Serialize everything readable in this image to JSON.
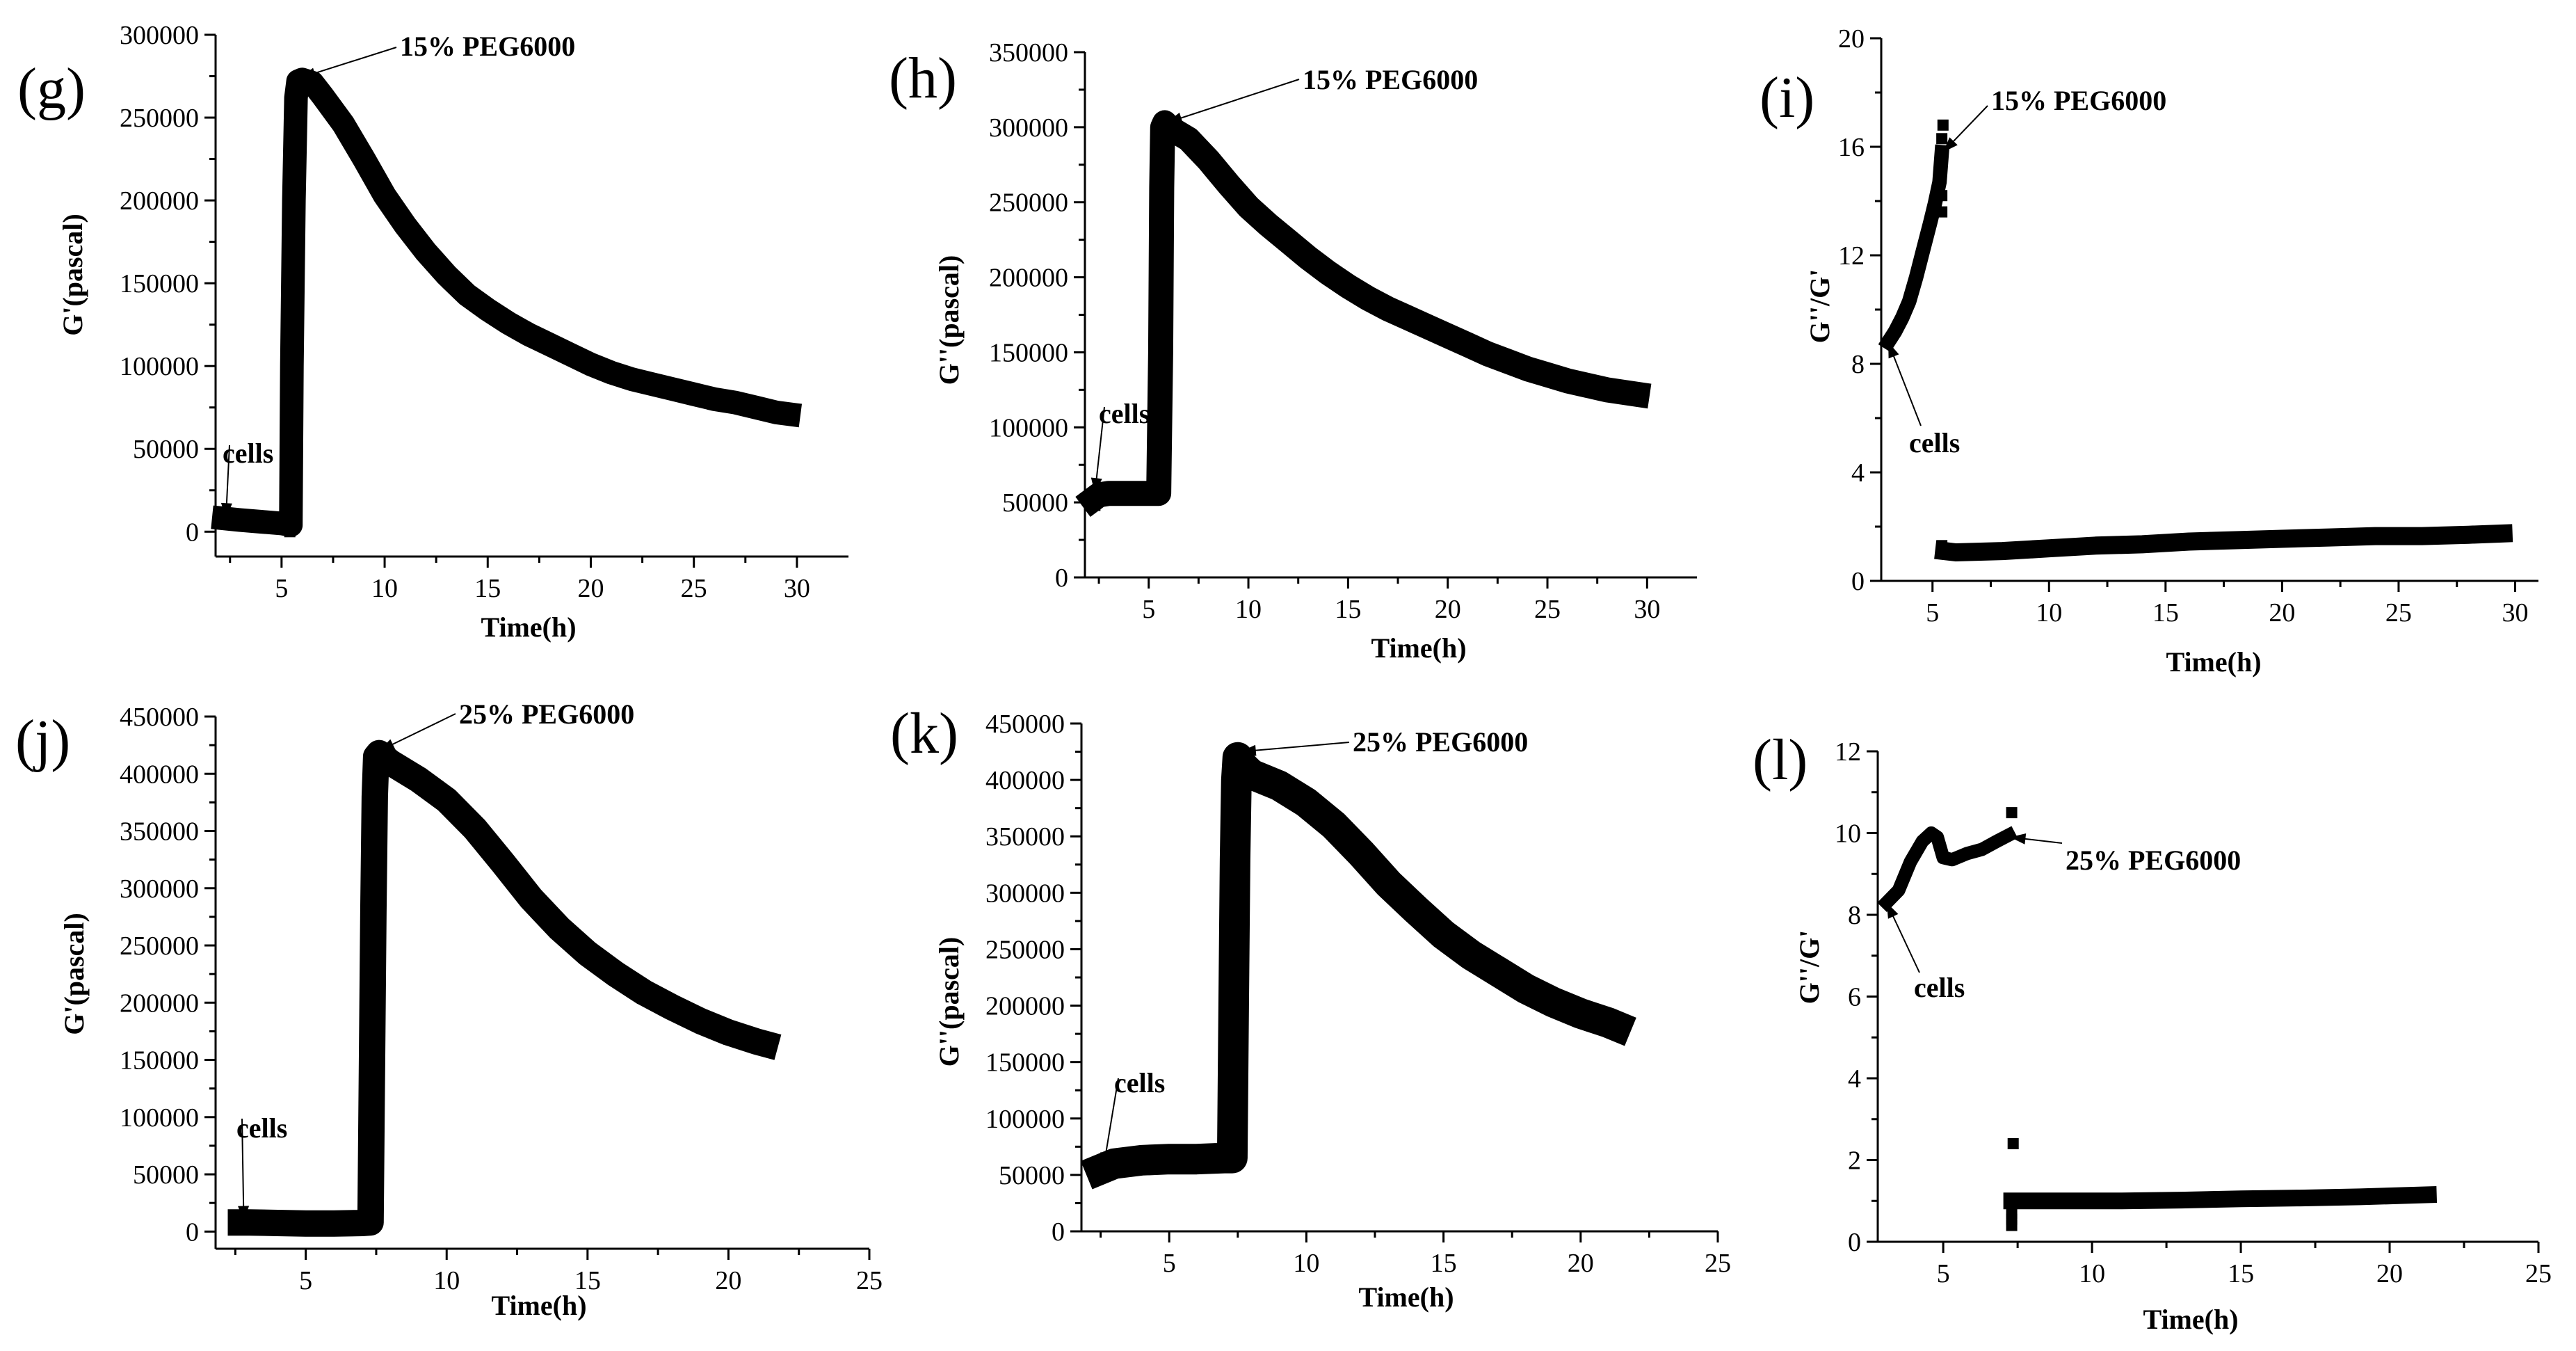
{
  "chart_data": [
    {
      "type": "scatter",
      "panel_label": "(g)",
      "xlabel": "Time(h)",
      "ylabel": "G'(pascal)",
      "xlim": [
        1.8,
        32.5
      ],
      "ylim": [
        -15000,
        300000
      ],
      "xticks": [
        5,
        10,
        15,
        20,
        25,
        30
      ],
      "yticks": [
        0,
        50000,
        100000,
        150000,
        200000,
        250000,
        300000
      ],
      "series": [
        {
          "name": "G'",
          "x": [
            2.2,
            3,
            4,
            5,
            5.45,
            5.5,
            5.6,
            5.7,
            5.8,
            6,
            6.5,
            7,
            8,
            9,
            10,
            11,
            12,
            13,
            14,
            15,
            16,
            17,
            18,
            19,
            20,
            21,
            22,
            23,
            24,
            25,
            26,
            27,
            28,
            29,
            29.6
          ],
          "values": [
            8000,
            7000,
            6000,
            5000,
            4000,
            100000,
            200000,
            262000,
            272000,
            273000,
            271000,
            263000,
            246000,
            225000,
            203000,
            185000,
            169000,
            155000,
            143000,
            134000,
            126000,
            119000,
            113000,
            107000,
            101000,
            96000,
            92000,
            89000,
            86000,
            83000,
            80000,
            78000,
            75000,
            72000,
            71000
          ]
        }
      ],
      "jump_points": {
        "x": [
          5.4,
          5.4,
          5.4,
          5.45,
          5.45,
          5.45
        ],
        "values": [
          0,
          20000,
          33000,
          50000,
          70000,
          90000
        ]
      },
      "annotations": [
        {
          "text": "15% PEG6000",
          "x": 5.9,
          "y": 274000,
          "position": "upper-right"
        },
        {
          "text": "cells",
          "x": 2.3,
          "y": 8000,
          "position": "upper-right"
        }
      ]
    },
    {
      "type": "scatter",
      "panel_label": "(h)",
      "xlabel": "Time(h)",
      "ylabel": "G''(pascal)",
      "xlim": [
        1.8,
        32.5
      ],
      "ylim": [
        0,
        350000
      ],
      "xticks": [
        5,
        10,
        15,
        20,
        25,
        30
      ],
      "yticks": [
        0,
        50000,
        100000,
        150000,
        200000,
        250000,
        300000,
        350000
      ],
      "series": [
        {
          "name": "G''",
          "x": [
            2.2,
            2.5,
            3,
            4,
            5,
            5.5,
            5.6,
            5.65,
            5.7,
            5.8,
            6,
            7,
            8,
            9,
            10,
            11,
            12,
            13,
            14,
            15,
            16,
            17,
            18,
            19,
            20,
            21,
            22,
            23,
            24,
            25,
            26,
            27,
            28,
            29,
            29.5
          ],
          "values": [
            52000,
            55000,
            56000,
            56000,
            56000,
            56000,
            150000,
            260000,
            300000,
            303000,
            300000,
            292000,
            278000,
            262000,
            247000,
            235000,
            224000,
            213000,
            203000,
            194000,
            186000,
            179000,
            173000,
            167000,
            161000,
            155000,
            149000,
            144000,
            139000,
            135000,
            131000,
            128000,
            125000,
            123000,
            122000
          ]
        }
      ],
      "jump_points": {
        "x": [
          2.3,
          5.55,
          5.55,
          5.55,
          5.55,
          5.55
        ],
        "values": [
          48000,
          88000,
          98000,
          108000,
          125000,
          138000
        ]
      },
      "annotations": [
        {
          "text": "15% PEG6000",
          "x": 5.9,
          "y": 303000,
          "position": "upper-right"
        },
        {
          "text": "cells",
          "x": 2.3,
          "y": 56000,
          "position": "upper-right"
        }
      ]
    },
    {
      "type": "scatter",
      "panel_label": "(i)",
      "xlabel": "Time(h)",
      "ylabel": "G''/G'",
      "xlim": [
        2.8,
        31
      ],
      "ylim": [
        0,
        20
      ],
      "xticks": [
        5,
        10,
        15,
        20,
        25,
        30
      ],
      "yticks": [
        0,
        4,
        8,
        12,
        16,
        20
      ],
      "series": [
        {
          "name": "G''/G' (cells)",
          "x": [
            3.1,
            3.4,
            3.7,
            4,
            4.3,
            4.6,
            4.9,
            5.1,
            5.3,
            5.4
          ],
          "values": [
            8.8,
            9.2,
            9.7,
            10.3,
            11.2,
            12.2,
            13.2,
            13.9,
            14.7,
            15.8
          ]
        },
        {
          "name": "G''/G' (15% PEG6000)",
          "x": [
            5.5,
            6,
            8,
            10,
            12,
            14,
            16,
            18,
            20,
            22,
            24,
            26,
            28,
            29.5
          ],
          "values": [
            1.1,
            1.05,
            1.1,
            1.2,
            1.3,
            1.35,
            1.45,
            1.5,
            1.55,
            1.6,
            1.65,
            1.65,
            1.7,
            1.75
          ]
        }
      ],
      "jump_points": {
        "x": [
          5.4,
          5.4,
          5.4,
          5.45,
          5.4
        ],
        "values": [
          13.6,
          14.2,
          16.3,
          16.8,
          1.3
        ]
      },
      "annotations": [
        {
          "text": "15% PEG6000",
          "x": 5.45,
          "y": 15.8,
          "position": "upper-right"
        },
        {
          "text": "cells",
          "x": 3.1,
          "y": 8.8,
          "position": "below"
        }
      ]
    },
    {
      "type": "scatter",
      "panel_label": "(j)",
      "xlabel": "Time(h)",
      "ylabel": "G'(pascal)",
      "xlim": [
        1.8,
        25
      ],
      "ylim": [
        -15000,
        450000
      ],
      "xticks": [
        5,
        10,
        15,
        20,
        25
      ],
      "yticks": [
        0,
        50000,
        100000,
        150000,
        200000,
        250000,
        300000,
        350000,
        400000,
        450000
      ],
      "series": [
        {
          "name": "G'",
          "x": [
            2.7,
            3,
            4,
            5,
            6,
            7,
            7.3,
            7.4,
            7.45,
            7.5,
            7.6,
            8,
            9,
            10,
            11,
            12,
            13,
            14,
            15,
            16,
            17,
            18,
            19,
            20,
            21,
            21.3
          ],
          "values": [
            8000,
            8000,
            7500,
            7000,
            7000,
            7500,
            8000,
            280000,
            380000,
            415000,
            418000,
            410000,
            395000,
            377000,
            352000,
            322000,
            291000,
            265000,
            243000,
            225000,
            209000,
            196000,
            184000,
            174000,
            166000,
            164000
          ]
        }
      ],
      "jump_points": {
        "x": [
          7.35,
          7.35,
          7.35,
          7.35,
          7.4,
          7.4,
          7.4,
          7.4,
          7.4
        ],
        "values": [
          35000,
          45000,
          58000,
          60000,
          190000,
          205000,
          215000,
          230000,
          255000
        ]
      },
      "annotations": [
        {
          "text": "25% PEG6000",
          "x": 7.6,
          "y": 420000,
          "position": "upper-right"
        },
        {
          "text": "cells",
          "x": 2.8,
          "y": 9000,
          "position": "upper-right"
        }
      ]
    },
    {
      "type": "scatter",
      "panel_label": "(k)",
      "xlabel": "Time(h)",
      "ylabel": "G''(pascal)",
      "xlim": [
        1.8,
        25
      ],
      "ylim": [
        0,
        450000
      ],
      "xticks": [
        5,
        10,
        15,
        20,
        25
      ],
      "yticks": [
        0,
        50000,
        100000,
        150000,
        200000,
        250000,
        300000,
        350000,
        400000,
        450000
      ],
      "series": [
        {
          "name": "G''",
          "x": [
            2.5,
            3,
            4,
            5,
            6,
            7,
            7.3,
            7.35,
            7.4,
            7.45,
            7.5,
            7.7,
            8,
            9,
            10,
            11,
            12,
            13,
            14,
            15,
            16,
            17,
            18,
            19,
            20,
            21,
            21.3
          ],
          "values": [
            55000,
            60000,
            63000,
            64000,
            64000,
            65000,
            65000,
            200000,
            330000,
            400000,
            420000,
            412000,
            405000,
            395000,
            380000,
            360000,
            335000,
            308000,
            285000,
            263000,
            245000,
            230000,
            215000,
            203000,
            193000,
            185000,
            182000
          ]
        }
      ],
      "jump_points": {
        "x": [
          7.4,
          7.4,
          7.4,
          7.4,
          7.4,
          7.4
        ],
        "values": [
          115000,
          135000,
          150000,
          165000,
          178000,
          185000
        ]
      },
      "annotations": [
        {
          "text": "25% PEG6000",
          "x": 7.6,
          "y": 425000,
          "position": "upper-right"
        },
        {
          "text": "cells",
          "x": 2.6,
          "y": 56000,
          "position": "upper-right"
        }
      ]
    },
    {
      "type": "scatter",
      "panel_label": "(l)",
      "xlabel": "Time(h)",
      "ylabel": "G''/G'",
      "xlim": [
        2.8,
        25
      ],
      "ylim": [
        0,
        12
      ],
      "xticks": [
        5,
        10,
        15,
        20,
        25
      ],
      "yticks": [
        0,
        2,
        4,
        6,
        8,
        10,
        12
      ],
      "series": [
        {
          "name": "G''/G' (cells)",
          "x": [
            3.1,
            3.5,
            3.9,
            4.3,
            4.6,
            4.8,
            5,
            5.3,
            5.8,
            6.3,
            6.8,
            7.2
          ],
          "values": [
            8.3,
            8.6,
            9.3,
            9.8,
            10,
            9.9,
            9.4,
            9.35,
            9.5,
            9.6,
            9.8,
            9.95
          ]
        },
        {
          "name": "G''/G' (25% PEG6000)",
          "x": [
            7.3,
            7.5,
            9,
            11,
            13,
            15,
            17,
            19,
            21.3
          ],
          "values": [
            1.0,
            1.0,
            1.0,
            1.0,
            1.02,
            1.05,
            1.07,
            1.1,
            1.15
          ]
        }
      ],
      "jump_points": {
        "x": [
          7.35,
          7.3,
          7.3,
          7.3,
          7.3
        ],
        "values": [
          2.4,
          0.4,
          0.55,
          0.7,
          10.5
        ]
      },
      "annotations": [
        {
          "text": "25% PEG6000",
          "x": 7.25,
          "y": 9.9,
          "position": "lower-right"
        },
        {
          "text": "cells",
          "x": 3.1,
          "y": 8.3,
          "position": "below"
        }
      ]
    }
  ]
}
